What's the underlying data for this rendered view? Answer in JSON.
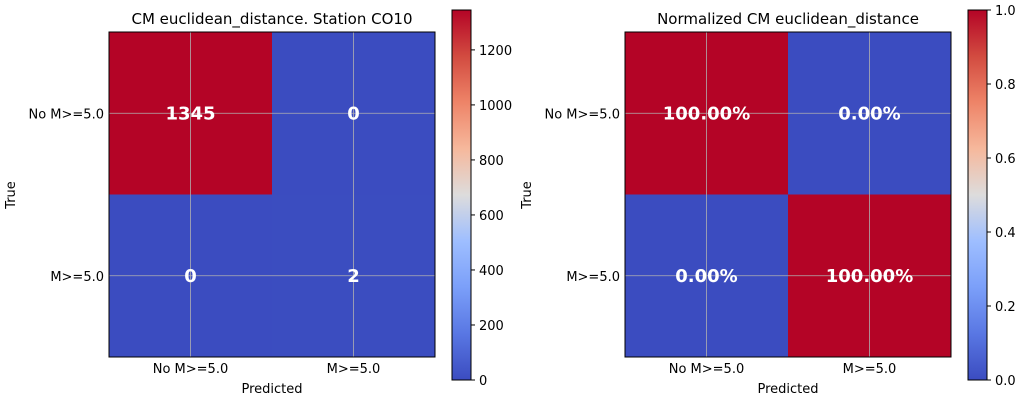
{
  "chart_data": [
    {
      "type": "heatmap",
      "title": "CM euclidean_distance. Station CO10",
      "xlabel": "Predicted",
      "ylabel": "True",
      "x_categories": [
        "No M>=5.0",
        "M>=5.0"
      ],
      "y_categories": [
        "No M>=5.0",
        "M>=5.0"
      ],
      "values": [
        [
          1345,
          0
        ],
        [
          0,
          2
        ]
      ],
      "cell_labels": [
        [
          "1345",
          "0"
        ],
        [
          "0",
          "2"
        ]
      ],
      "colorbar": {
        "min": 0,
        "max": 1345,
        "ticks": [
          0,
          200,
          400,
          600,
          800,
          1000,
          1200
        ],
        "tick_labels": [
          "0",
          "200",
          "400",
          "600",
          "800",
          "1000",
          "1200"
        ]
      },
      "colormap": "coolwarm",
      "grid": true
    },
    {
      "type": "heatmap",
      "title": "Normalized CM euclidean_distance",
      "xlabel": "Predicted",
      "ylabel": "True",
      "x_categories": [
        "No M>=5.0",
        "M>=5.0"
      ],
      "y_categories": [
        "No M>=5.0",
        "M>=5.0"
      ],
      "values": [
        [
          1.0,
          0.0
        ],
        [
          0.0,
          1.0
        ]
      ],
      "cell_labels": [
        [
          "100.00%",
          "0.00%"
        ],
        [
          "0.00%",
          "100.00%"
        ]
      ],
      "colorbar": {
        "min": 0,
        "max": 1,
        "ticks": [
          0,
          0.2,
          0.4,
          0.6,
          0.8,
          1.0
        ],
        "tick_labels": [
          "0.0",
          "0.2",
          "0.4",
          "0.6",
          "0.8",
          "1.0"
        ]
      },
      "colormap": "coolwarm",
      "grid": true
    }
  ]
}
